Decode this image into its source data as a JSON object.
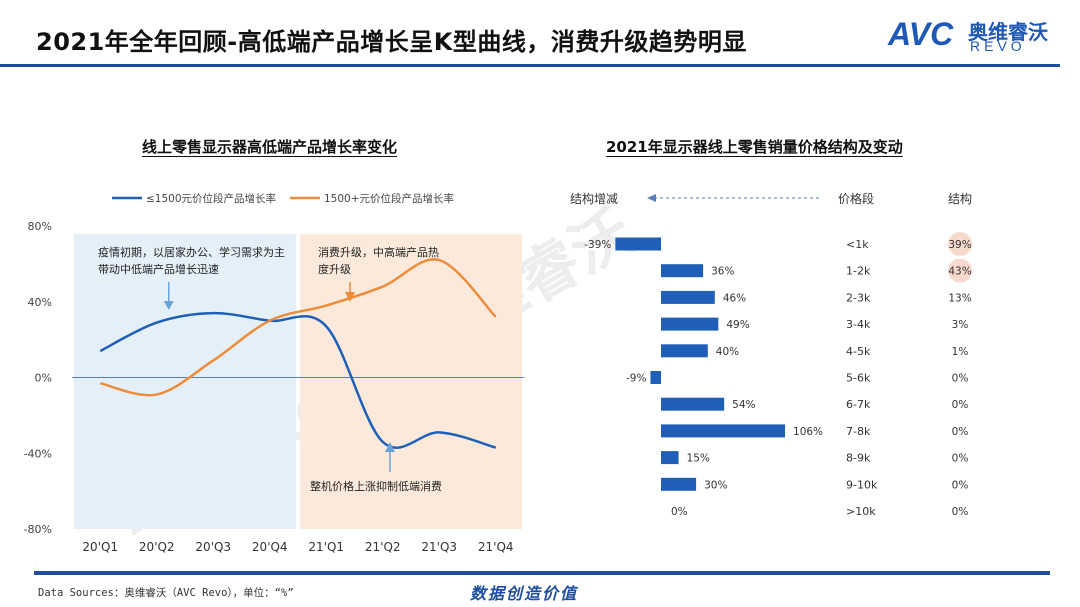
{
  "header": {
    "title": "2021年全年回顾-高低端产品增长呈K型曲线，消费升级趋势明显",
    "logo_avc": "AVC",
    "logo_cn": "奥维睿沃",
    "logo_revo": "REVO"
  },
  "watermark": "AVC Revo|奥维睿沃",
  "colors": {
    "brand": "#1f4e9e",
    "series_low": "#1f5fb8",
    "series_high": "#ed8c3a",
    "left_shade": "#e5eff8",
    "right_shade": "#fbeadb",
    "bar": "#1f5fb8",
    "highlight_circle": "#f6d8cc"
  },
  "chart_data": [
    {
      "type": "line",
      "title": "线上零售显示器高低端产品增长率变化",
      "categories": [
        "20'Q1",
        "20'Q2",
        "20'Q3",
        "20'Q4",
        "21'Q1",
        "21'Q2",
        "21'Q3",
        "21'Q4"
      ],
      "series": [
        {
          "name": "≤1500元价位段产品增长率",
          "values": [
            14,
            29,
            34,
            30,
            27,
            -34,
            -29,
            -37
          ]
        },
        {
          "name": "1500+元价位段产品增长率",
          "values": [
            -3,
            -9,
            9,
            30,
            38,
            48,
            62,
            32
          ]
        }
      ],
      "ylim": [
        -80,
        80
      ],
      "yticks": [
        "80%",
        "40%",
        "0%",
        "-40%",
        "-80%"
      ],
      "legend": "top",
      "annotations": [
        "疫情初期，以居家办公、学习需求为主带动中低端产品增长迅速",
        "消费升级，中高端产品热度升级",
        "整机价格上涨抑制低端消费"
      ]
    },
    {
      "type": "bar",
      "title": "2021年显示器线上零售销量价格结构及变动",
      "headers": {
        "change": "结构增减",
        "segment": "价格段",
        "share": "结构"
      },
      "categories": [
        "<1k",
        "1-2k",
        "2-3k",
        "3-4k",
        "4-5k",
        "5-6k",
        "6-7k",
        "7-8k",
        "8-9k",
        "9-10k",
        ">10k"
      ],
      "values": [
        -39,
        36,
        46,
        49,
        40,
        -9,
        54,
        106,
        15,
        30,
        0
      ],
      "value_labels": [
        "-39%",
        "36%",
        "46%",
        "49%",
        "40%",
        "-9%",
        "54%",
        "106%",
        "15%",
        "30%",
        "0%"
      ],
      "shares": [
        "39%",
        "43%",
        "13%",
        "3%",
        "1%",
        "0%",
        "0%",
        "0%",
        "0%",
        "0%",
        "0%"
      ],
      "highlighted_shares": [
        0,
        1
      ]
    }
  ],
  "footer": {
    "source": "Data Sources：奥维睿沃（AVC Revo），单位：“%”",
    "slogan": "数据创造价值"
  }
}
